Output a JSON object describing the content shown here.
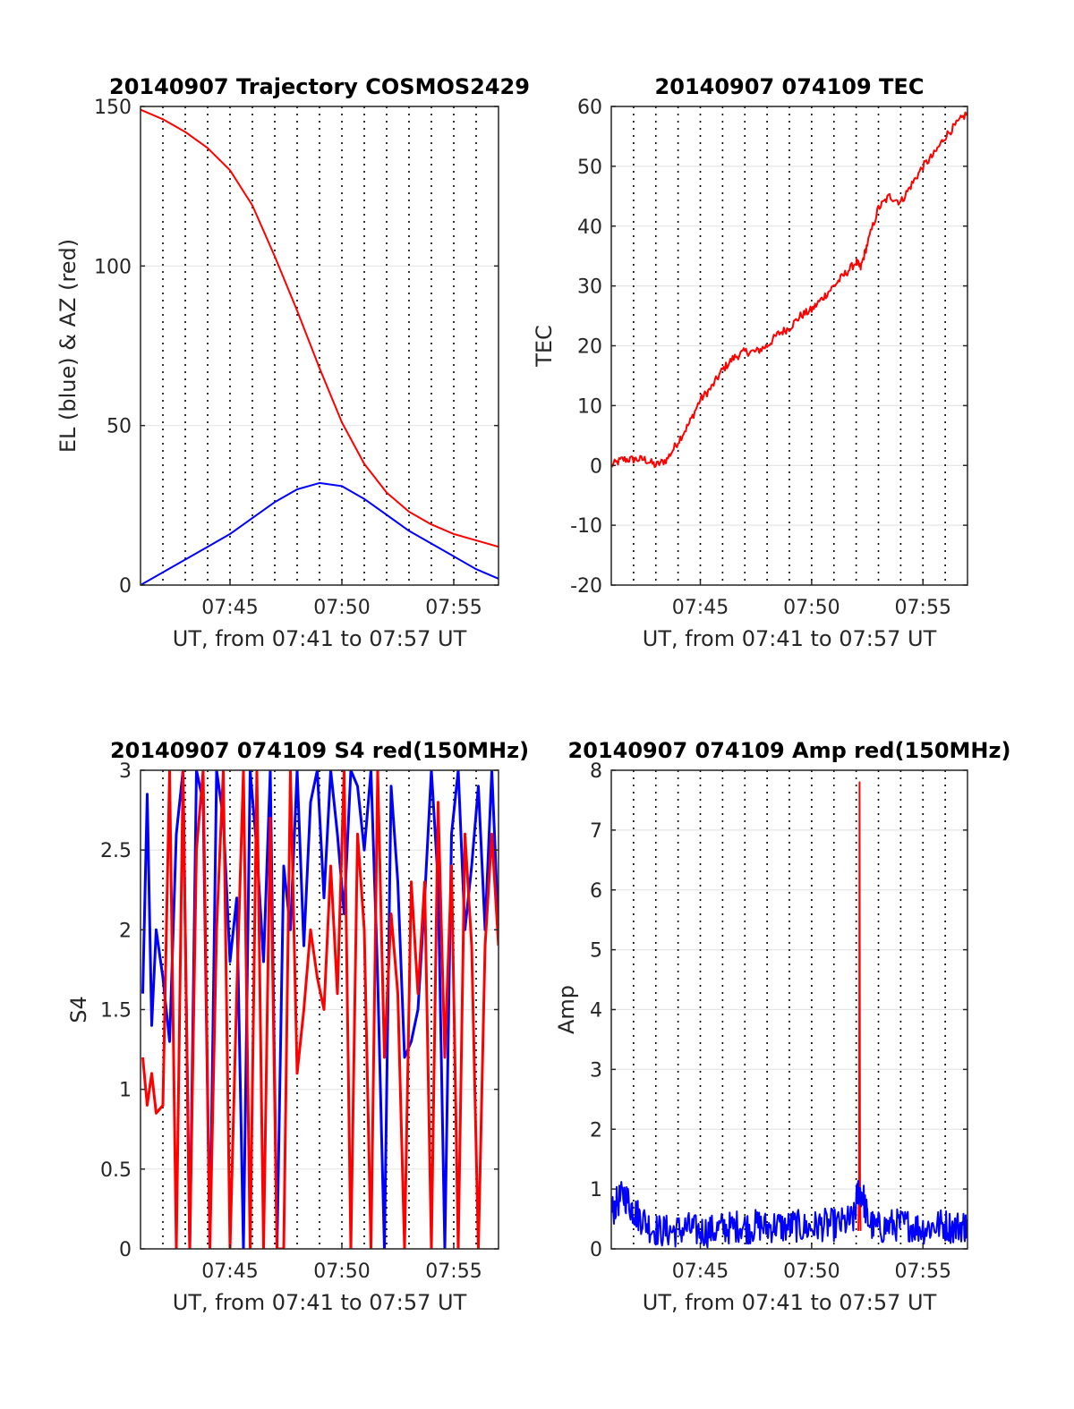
{
  "chart_data": [
    {
      "type": "line",
      "title": "20140907 Trajectory COSMOS2429",
      "xlabel": "UT, from 07:41 to 07:57 UT",
      "ylabel": "EL (blue) & AZ (red)",
      "x_range_min": [
        461,
        477
      ],
      "ylim": [
        0,
        150
      ],
      "x_ticks": [
        {
          "v": 465,
          "label": "07:45"
        },
        {
          "v": 470,
          "label": "07:50"
        },
        {
          "v": 475,
          "label": "07:55"
        }
      ],
      "y_ticks": [
        {
          "v": 0,
          "label": "0"
        },
        {
          "v": 50,
          "label": "50"
        },
        {
          "v": 100,
          "label": "100"
        },
        {
          "v": 150,
          "label": "150"
        }
      ],
      "vgrid_step_min": 1,
      "series": [
        {
          "color": "#ff0000",
          "x": [
            461,
            462,
            463,
            464,
            465,
            466,
            467,
            468,
            469,
            470,
            471,
            472,
            473,
            474,
            475,
            476,
            477
          ],
          "values": [
            149,
            146,
            142,
            137,
            130,
            119,
            103,
            86,
            68,
            51,
            38,
            29,
            23,
            19,
            16,
            14,
            12
          ]
        },
        {
          "color": "#0000ff",
          "x": [
            461,
            462,
            463,
            464,
            465,
            466,
            467,
            468,
            469,
            470,
            471,
            472,
            473,
            474,
            475,
            476,
            477
          ],
          "values": [
            0,
            4,
            8,
            12,
            16,
            21,
            26,
            30,
            32,
            31,
            27,
            22,
            17,
            13,
            9,
            5,
            2
          ]
        }
      ]
    },
    {
      "type": "line",
      "title": "20140907 074109 TEC",
      "xlabel": "UT, from 07:41 to 07:57 UT",
      "ylabel": "TEC",
      "x_range_min": [
        461,
        477
      ],
      "ylim": [
        -20,
        60
      ],
      "x_ticks": [
        {
          "v": 465,
          "label": "07:45"
        },
        {
          "v": 470,
          "label": "07:50"
        },
        {
          "v": 475,
          "label": "07:55"
        }
      ],
      "y_ticks": [
        {
          "v": -20,
          "label": "-20"
        },
        {
          "v": -10,
          "label": "-10"
        },
        {
          "v": 0,
          "label": "0"
        },
        {
          "v": 10,
          "label": "10"
        },
        {
          "v": 20,
          "label": "20"
        },
        {
          "v": 30,
          "label": "30"
        },
        {
          "v": 40,
          "label": "40"
        },
        {
          "v": 50,
          "label": "50"
        },
        {
          "v": 60,
          "label": "60"
        }
      ],
      "vgrid_step_min": 1,
      "series": [
        {
          "color": "#ff0000",
          "noise": 0.7,
          "x": [
            461.0,
            461.5,
            462.0,
            462.5,
            463.0,
            463.5,
            464.0,
            464.5,
            465.0,
            465.5,
            466.0,
            466.5,
            467.0,
            467.5,
            468.0,
            468.5,
            469.0,
            469.5,
            470.0,
            470.5,
            471.0,
            471.5,
            472.0,
            472.2,
            472.5,
            473.0,
            473.5,
            474.0,
            474.5,
            475.0,
            475.5,
            476.0,
            476.5,
            477.0
          ],
          "values": [
            0,
            1,
            1,
            1,
            0,
            1,
            4,
            7,
            11,
            13,
            16,
            18,
            19,
            19,
            20,
            22,
            23,
            25,
            26,
            28,
            30,
            32,
            34,
            33,
            37,
            43,
            45,
            44,
            47,
            50,
            52,
            55,
            57,
            59
          ]
        }
      ]
    },
    {
      "type": "line",
      "title": "20140907 074109 S4 red(150MHz)",
      "xlabel": "UT, from 07:41 to 07:57 UT",
      "ylabel": "S4",
      "x_range_min": [
        461,
        477
      ],
      "ylim": [
        0,
        3
      ],
      "x_ticks": [
        {
          "v": 465,
          "label": "07:45"
        },
        {
          "v": 470,
          "label": "07:50"
        },
        {
          "v": 475,
          "label": "07:55"
        }
      ],
      "y_ticks": [
        {
          "v": 0,
          "label": "0"
        },
        {
          "v": 0.5,
          "label": "0.5"
        },
        {
          "v": 1,
          "label": "1"
        },
        {
          "v": 1.5,
          "label": "1.5"
        },
        {
          "v": 2,
          "label": "2"
        },
        {
          "v": 2.5,
          "label": "2.5"
        },
        {
          "v": 3,
          "label": "3"
        }
      ],
      "vgrid_step_min": 1,
      "series": [
        {
          "color": "#0000ff",
          "x": [
            461.1,
            461.3,
            461.5,
            461.7,
            462.0,
            462.3,
            462.6,
            462.9,
            463.2,
            463.5,
            463.8,
            464.1,
            464.4,
            464.7,
            465.0,
            465.3,
            465.6,
            465.9,
            466.2,
            466.5,
            466.8,
            467.1,
            467.4,
            467.7,
            468.0,
            468.3,
            468.6,
            468.9,
            469.2,
            469.5,
            469.8,
            470.1,
            470.4,
            470.7,
            471.0,
            471.3,
            471.6,
            471.9,
            472.2,
            472.5,
            472.8,
            473.1,
            473.4,
            473.7,
            474.0,
            474.3,
            474.6,
            474.9,
            475.2,
            475.5,
            475.8,
            476.1,
            476.4,
            476.7,
            477.0
          ],
          "values": [
            1.6,
            2.85,
            1.4,
            2.0,
            1.7,
            1.3,
            2.6,
            3.0,
            0,
            3.0,
            2.8,
            0,
            3.0,
            2.7,
            1.8,
            2.2,
            0,
            3.0,
            2.5,
            1.8,
            3.0,
            0,
            2.4,
            2.0,
            3.0,
            1.9,
            2.8,
            3.0,
            2.2,
            3.0,
            2.6,
            2.1,
            3.0,
            2.9,
            2.5,
            3.0,
            1.7,
            0,
            2.9,
            2.3,
            1.2,
            1.3,
            1.5,
            2.2,
            3.0,
            2.3,
            0,
            2.6,
            3.0,
            2.0,
            2.4,
            2.9,
            2.0,
            3.0,
            2.0
          ]
        },
        {
          "color": "#ff0000",
          "x": [
            461.1,
            461.3,
            461.5,
            461.7,
            462.0,
            462.3,
            462.6,
            462.9,
            463.2,
            463.5,
            463.8,
            464.1,
            464.4,
            464.7,
            465.0,
            465.3,
            465.6,
            465.9,
            466.2,
            466.5,
            466.8,
            467.1,
            467.4,
            467.7,
            468.0,
            468.3,
            468.6,
            468.9,
            469.2,
            469.5,
            469.8,
            470.1,
            470.4,
            470.7,
            471.0,
            471.3,
            471.6,
            471.9,
            472.2,
            472.5,
            472.8,
            473.1,
            473.4,
            473.7,
            474.0,
            474.3,
            474.6,
            474.9,
            475.2,
            475.5,
            475.8,
            476.1,
            476.4,
            476.7,
            477.0
          ],
          "values": [
            1.2,
            0.9,
            1.1,
            0.85,
            0.9,
            3.0,
            0,
            3.0,
            0,
            2.5,
            3.0,
            0,
            2.0,
            3.0,
            0,
            1.6,
            3.0,
            0,
            3.0,
            0,
            2.7,
            0,
            0,
            3.0,
            1.1,
            1.5,
            2.0,
            1.7,
            1.5,
            2.4,
            1.6,
            3.0,
            0,
            2.6,
            2.0,
            0,
            3.0,
            1.2,
            2.1,
            1.6,
            0,
            2.3,
            1.6,
            2.3,
            0,
            2.8,
            1.2,
            2.4,
            0,
            2.6,
            1.9,
            0,
            1.9,
            2.6,
            1.9
          ]
        }
      ]
    },
    {
      "type": "line",
      "title": "20140907 074109 Amp red(150MHz)",
      "xlabel": "UT, from 07:41 to 07:57 UT",
      "ylabel": "Amp",
      "x_range_min": [
        461,
        477
      ],
      "ylim": [
        0,
        8
      ],
      "x_ticks": [
        {
          "v": 465,
          "label": "07:45"
        },
        {
          "v": 470,
          "label": "07:50"
        },
        {
          "v": 475,
          "label": "07:55"
        }
      ],
      "y_ticks": [
        {
          "v": 0,
          "label": "0"
        },
        {
          "v": 1,
          "label": "1"
        },
        {
          "v": 2,
          "label": "2"
        },
        {
          "v": 3,
          "label": "3"
        },
        {
          "v": 4,
          "label": "4"
        },
        {
          "v": 5,
          "label": "5"
        },
        {
          "v": 6,
          "label": "6"
        },
        {
          "v": 7,
          "label": "7"
        },
        {
          "v": 8,
          "label": "8"
        }
      ],
      "vgrid_step_min": 1,
      "series": [
        {
          "color": "#ff0000",
          "x": [
            472.1,
            472.13,
            472.15,
            472.17,
            472.2
          ],
          "values": [
            0.3,
            1.0,
            7.8,
            1.0,
            0.3
          ]
        },
        {
          "color": "#0000ff",
          "noise": 0.28,
          "x": [
            461.0,
            461.3,
            461.6,
            461.9,
            462.1,
            462.4,
            462.8,
            463.2,
            463.6,
            464.0,
            464.4,
            464.8,
            465.2,
            465.6,
            466.0,
            466.4,
            466.8,
            467.2,
            467.6,
            468.0,
            468.4,
            468.8,
            469.2,
            469.6,
            470.0,
            470.4,
            470.8,
            471.2,
            471.6,
            471.9,
            472.1,
            472.3,
            472.5,
            472.8,
            473.2,
            473.6,
            474.0,
            474.4,
            474.8,
            475.2,
            475.6,
            476.0,
            476.4,
            476.8,
            477.0
          ],
          "values": [
            0.6,
            0.8,
            0.9,
            0.7,
            0.6,
            0.5,
            0.35,
            0.3,
            0.3,
            0.3,
            0.35,
            0.3,
            0.3,
            0.3,
            0.35,
            0.35,
            0.4,
            0.35,
            0.4,
            0.35,
            0.4,
            0.35,
            0.4,
            0.35,
            0.35,
            0.4,
            0.4,
            0.4,
            0.45,
            0.5,
            1.0,
            0.9,
            0.5,
            0.35,
            0.35,
            0.4,
            0.4,
            0.4,
            0.35,
            0.35,
            0.4,
            0.4,
            0.35,
            0.4,
            0.35
          ]
        }
      ]
    }
  ]
}
